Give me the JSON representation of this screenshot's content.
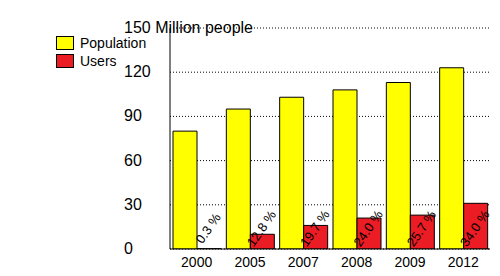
{
  "chart_data": {
    "type": "bar",
    "categories": [
      "2000",
      "2005",
      "2007",
      "2008",
      "2009",
      "2012"
    ],
    "series": [
      {
        "name": "Population",
        "color": "#ffff00",
        "values": [
          80,
          95,
          103,
          108,
          113,
          123
        ]
      },
      {
        "name": "Users",
        "color": "#ec1c24",
        "values": [
          0.2,
          10,
          16,
          21,
          23,
          31
        ]
      }
    ],
    "annotations": [
      "0.3 %",
      "12.8 %",
      "19.7 %",
      "24.0 %",
      "25.7 %",
      "34.0 %"
    ],
    "ylim": [
      0,
      150
    ],
    "yticks": [
      0,
      30,
      60,
      90,
      120,
      {
        "value": 150,
        "label": "150 Million people"
      }
    ],
    "grid": true,
    "legend": "upper left"
  }
}
